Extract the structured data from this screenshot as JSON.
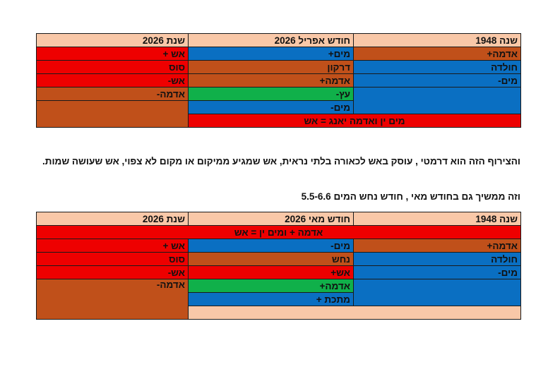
{
  "table1": {
    "headers": [
      "שנה 1948",
      "חודש אפריל 2026",
      "שנת 2026"
    ],
    "rows": [
      [
        "אדמה+",
        "מים+",
        "אש +"
      ],
      [
        "חולדה",
        "דרקון",
        "סוס"
      ],
      [
        "מים-",
        "אדמה+",
        "אש-"
      ],
      [
        "",
        "עץ-",
        "אדמה-"
      ],
      [
        "",
        "מים-",
        ""
      ]
    ],
    "footer": "מים ין ואדמה יאנג =  אש"
  },
  "paragraph1": "והצירוף הזה הוא דרמטי , עוסק באש לכאורה בלתי נראית, אש שמגיע ממיקום או מקום לא צפוי, אש שעושה שמות.",
  "paragraph2": "וזה ממשיך גם בחודש מאי , חודש נחש המים 5.5-6.6",
  "table2": {
    "headers": [
      "שנה 1948",
      "חודש מאי 2026",
      "שנת 2026"
    ],
    "banner": "אדמה + ומים ין = אש",
    "rows": [
      [
        "אדמה+",
        "מים-",
        "אש +"
      ],
      [
        "חולדה",
        "נחש",
        "סוס"
      ],
      [
        "מים-",
        "אש+",
        "אש-"
      ],
      [
        "",
        "אדמה+",
        "אדמה-"
      ],
      [
        "",
        "מתכת +",
        ""
      ]
    ]
  },
  "colors": {
    "peach": "#f9c8a8",
    "red": "#ee0000",
    "blue": "#0a6fc2",
    "brown": "#c0501a",
    "green": "#10b04a"
  }
}
